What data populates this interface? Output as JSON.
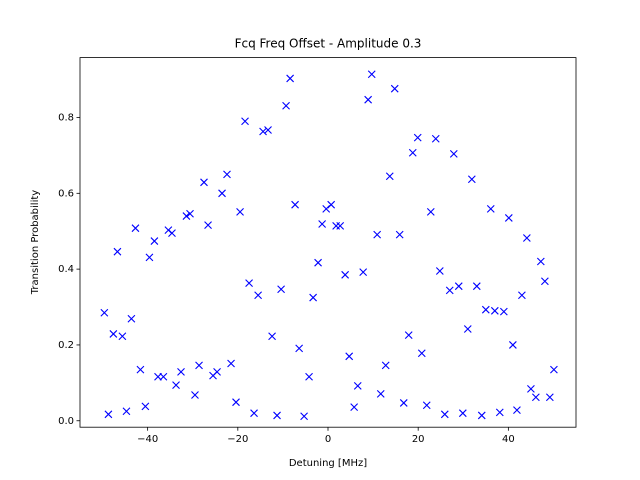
{
  "chart_data": {
    "type": "scatter",
    "title": "Fcq Freq Offset - Amplitude 0.3",
    "xlabel": "Detuning [MHz]",
    "ylabel": "Transition Probability",
    "color": "#0000ff",
    "marker": "x",
    "xlim": [
      -55,
      55
    ],
    "ylim": [
      -0.017,
      0.958
    ],
    "xticks": [
      {
        "value": -40,
        "label": "−40"
      },
      {
        "value": -20,
        "label": "−20"
      },
      0,
      20,
      40
    ],
    "yticks": [
      {
        "value": 0,
        "label": "0.0"
      },
      0.2,
      0.4,
      0.6,
      0.8
    ],
    "x": [
      -49.6,
      -48.7,
      -47.6,
      -46.7,
      -45.6,
      -44.7,
      -43.6,
      -42.7,
      -41.6,
      -40.5,
      -39.6,
      -38.5,
      -37.7,
      -36.5,
      -35.4,
      -34.6,
      -33.7,
      -32.6,
      -31.4,
      -30.6,
      -29.5,
      -28.6,
      -27.5,
      -26.6,
      -25.5,
      -24.6,
      -23.5,
      -22.4,
      -21.5,
      -20.4,
      -19.5,
      -18.4,
      -17.5,
      -16.4,
      -15.5,
      -14.4,
      -13.3,
      -12.4,
      -11.3,
      -10.4,
      -9.3,
      -8.4,
      -7.3,
      -6.4,
      -5.3,
      -4.2,
      -3.3,
      -2.2,
      -1.3,
      -0.4,
      0.7,
      1.8,
      2.7,
      3.8,
      4.7,
      5.8,
      6.6,
      7.8,
      8.9,
      9.7,
      10.9,
      11.7,
      12.8,
      13.7,
      14.8,
      15.9,
      16.8,
      17.9,
      18.8,
      19.9,
      20.8,
      21.9,
      22.8,
      23.9,
      24.8,
      25.9,
      27.0,
      27.9,
      29.0,
      29.9,
      31.0,
      31.9,
      33.0,
      34.1,
      35.0,
      36.1,
      37.0,
      38.1,
      39.0,
      40.1,
      41.0,
      41.9,
      43.0,
      44.1,
      45.0,
      46.1,
      47.2,
      48.1,
      49.2,
      50.1
    ],
    "values": [
      0.285,
      0.017,
      0.229,
      0.446,
      0.223,
      0.025,
      0.269,
      0.508,
      0.135,
      0.038,
      0.431,
      0.474,
      0.116,
      0.116,
      0.503,
      0.495,
      0.094,
      0.129,
      0.54,
      0.546,
      0.068,
      0.146,
      0.629,
      0.516,
      0.119,
      0.129,
      0.6,
      0.65,
      0.151,
      0.049,
      0.551,
      0.79,
      0.363,
      0.02,
      0.331,
      0.763,
      0.767,
      0.223,
      0.014,
      0.347,
      0.831,
      0.903,
      0.57,
      0.191,
      0.012,
      0.116,
      0.325,
      0.417,
      0.519,
      0.559,
      0.57,
      0.514,
      0.514,
      0.385,
      0.17,
      0.036,
      0.092,
      0.392,
      0.847,
      0.914,
      0.491,
      0.071,
      0.146,
      0.645,
      0.876,
      0.491,
      0.047,
      0.226,
      0.707,
      0.747,
      0.178,
      0.041,
      0.551,
      0.744,
      0.395,
      0.017,
      0.344,
      0.704,
      0.355,
      0.02,
      0.242,
      0.637,
      0.355,
      0.014,
      0.293,
      0.559,
      0.29,
      0.022,
      0.288,
      0.535,
      0.2,
      0.028,
      0.331,
      0.482,
      0.084,
      0.062,
      0.42,
      0.368,
      0.062,
      0.135
    ]
  }
}
